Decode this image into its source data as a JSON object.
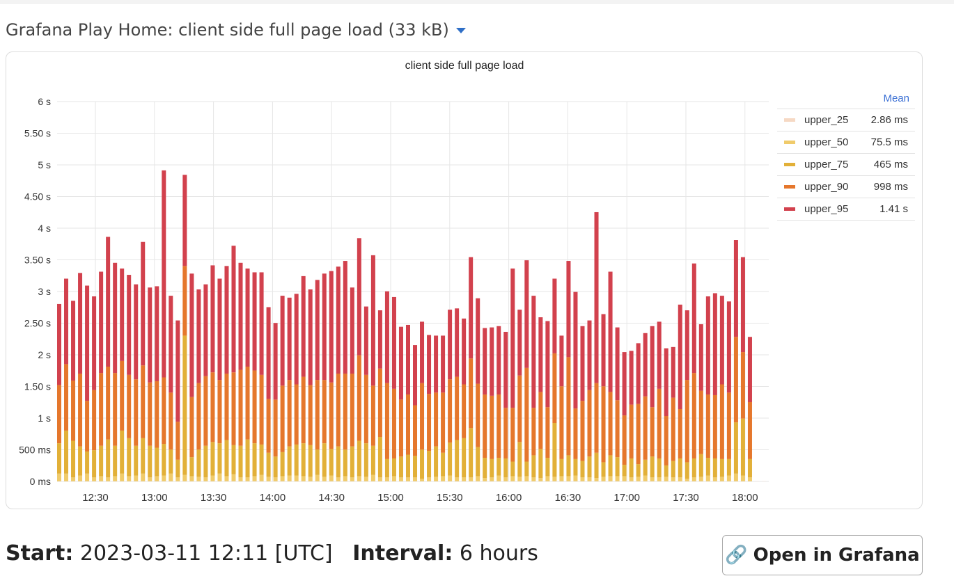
{
  "header": {
    "title": "Grafana Play Home: client side full page load (33 kB)"
  },
  "footer": {
    "start_label": "Start:",
    "start_value": "2023-03-11 12:11 [UTC]",
    "interval_label": "Interval:",
    "interval_value": "6 hours",
    "button_label": "Open in Grafana",
    "button_icon": "link-icon"
  },
  "chart_data": {
    "type": "bar",
    "stacked": true,
    "title": "client side full page load",
    "xlabel": "",
    "ylabel": "",
    "ylim": [
      0,
      6000
    ],
    "yticks": [
      {
        "v": 0,
        "label": "0 ms"
      },
      {
        "v": 500,
        "label": "500 ms"
      },
      {
        "v": 1000,
        "label": "1 s"
      },
      {
        "v": 1500,
        "label": "1.50 s"
      },
      {
        "v": 2000,
        "label": "2 s"
      },
      {
        "v": 2500,
        "label": "2.50 s"
      },
      {
        "v": 3000,
        "label": "3 s"
      },
      {
        "v": 3500,
        "label": "3.50 s"
      },
      {
        "v": 4000,
        "label": "4 s"
      },
      {
        "v": 4500,
        "label": "4.50 s"
      },
      {
        "v": 5000,
        "label": "5 s"
      },
      {
        "v": 5500,
        "label": "5.50 s"
      },
      {
        "v": 6000,
        "label": "6 s"
      }
    ],
    "xticks": [
      "12:30",
      "13:00",
      "13:30",
      "14:00",
      "14:30",
      "15:00",
      "15:30",
      "16:00",
      "16:30",
      "17:00",
      "17:30",
      "18:00"
    ],
    "grid": true,
    "legend_placement": "right",
    "legend_header": "Mean",
    "series": [
      {
        "name": "upper_25",
        "color": "#f6d9c4",
        "mean": "2.86 ms",
        "values": [
          3,
          3,
          3,
          3,
          3,
          3,
          3,
          3,
          3,
          3,
          3,
          3,
          3,
          3,
          3,
          3,
          3,
          3,
          3,
          3,
          3,
          3,
          3,
          3,
          3,
          3,
          3,
          3,
          3,
          3,
          3,
          3,
          3,
          3,
          3,
          3,
          3,
          3,
          3,
          3,
          3,
          3,
          3,
          3,
          3,
          3,
          3,
          3,
          3,
          3,
          3,
          3,
          3,
          3,
          3,
          3,
          3,
          3,
          3,
          3,
          3,
          3,
          3,
          3,
          3,
          3,
          3,
          3,
          3,
          3,
          3,
          3,
          3,
          3,
          3,
          3,
          3,
          3,
          3,
          3,
          3,
          3,
          3,
          3,
          3,
          3,
          3,
          3,
          3,
          3,
          3,
          3,
          3,
          3,
          3,
          3,
          3,
          3,
          3,
          3,
          3,
          3
        ]
      },
      {
        "name": "upper_50",
        "color": "#f0cb6b",
        "mean": "75.5 ms",
        "values": [
          120,
          120,
          60,
          90,
          120,
          60,
          80,
          60,
          80,
          120,
          80,
          90,
          120,
          60,
          80,
          90,
          120,
          60,
          100,
          80,
          70,
          60,
          90,
          120,
          80,
          110,
          60,
          60,
          80,
          100,
          70,
          60,
          80,
          90,
          90,
          80,
          70,
          100,
          70,
          90,
          60,
          80,
          60,
          80,
          70,
          100,
          60,
          60,
          80,
          60,
          60,
          60,
          40,
          60,
          70,
          80,
          90,
          60,
          60,
          60,
          80,
          50,
          60,
          90,
          60,
          80,
          70,
          80,
          60,
          50,
          80,
          70,
          80,
          80,
          90,
          60,
          60,
          50,
          70,
          80,
          80,
          80,
          60,
          70,
          90,
          60,
          60,
          70,
          60,
          60,
          40,
          60,
          70,
          90,
          60,
          70,
          90,
          120,
          90,
          60
        ]
      },
      {
        "name": "upper_75",
        "color": "#e2b038",
        "mean": "465 ms",
        "values": [
          480,
          680,
          580,
          460,
          350,
          430,
          480,
          600,
          480,
          680,
          600,
          470,
          560,
          500,
          450,
          500,
          380,
          280,
          2200,
          300,
          430,
          500,
          530,
          480,
          570,
          460,
          500,
          600,
          520,
          480,
          380,
          330,
          380,
          460,
          490,
          520,
          500,
          400,
          530,
          420,
          490,
          420,
          490,
          560,
          530,
          460,
          640,
          290,
          280,
          330,
          360,
          340,
          460,
          420,
          480,
          370,
          520,
          590,
          620,
          780,
          460,
          320,
          290,
          280,
          300,
          230,
          550,
          230,
          350,
          460,
          290,
          850,
          270,
          330,
          260,
          260,
          330,
          400,
          230,
          330,
          300,
          180,
          300,
          200,
          250,
          330,
          300,
          180,
          260,
          300,
          260,
          300,
          360,
          280,
          300,
          280,
          260,
          810,
          900,
          290
        ]
      },
      {
        "name": "upper_90",
        "color": "#e5772c",
        "mean": "998 ms",
        "values": [
          920,
          1050,
          950,
          1150,
          800,
          950,
          1150,
          1150,
          1150,
          1100,
          1000,
          1050,
          1150,
          1000,
          1050,
          1050,
          900,
          600,
          1100,
          950,
          1050,
          1100,
          1100,
          1000,
          1050,
          1150,
          1200,
          1150,
          1150,
          1100,
          850,
          900,
          1050,
          1050,
          950,
          1050,
          950,
          1100,
          1000,
          1050,
          1150,
          1200,
          1150,
          1350,
          1080,
          950,
          1080,
          1200,
          1100,
          900,
          950,
          800,
          1050,
          900,
          850,
          950,
          1000,
          1000,
          850,
          1100,
          1000,
          1000,
          1000,
          1000,
          800,
          850,
          1050,
          1480,
          750,
          900,
          800,
          1100,
          1150,
          1550,
          800,
          950,
          1050,
          1100,
          1200,
          1000,
          900,
          780,
          850,
          950,
          1000,
          780,
          1100,
          780,
          1000,
          780,
          1300,
          1350,
          1000,
          1000,
          1000,
          1180,
          1050,
          1350,
          1050,
          900
        ]
      },
      {
        "name": "upper_95",
        "color": "#d2414d",
        "mean": "1.41 s",
        "values": [
          1280,
          1350,
          1260,
          1590,
          1820,
          1480,
          1600,
          2050,
          1740,
          1460,
          1580,
          1500,
          1950,
          1500,
          1500,
          3270,
          1530,
          1600,
          1440,
          1950,
          1480,
          1450,
          1690,
          1600,
          1700,
          2000,
          1690,
          1550,
          1550,
          1620,
          1450,
          1210,
          1420,
          1300,
          1430,
          1590,
          1510,
          1580,
          1680,
          1760,
          1690,
          1780,
          1360,
          1850,
          1080,
          2060,
          920,
          1450,
          1450,
          1150,
          1100,
          950,
          970,
          930,
          900,
          900,
          1100,
          1080,
          1040,
          1600,
          1350,
          1050,
          1080,
          1080,
          1200,
          2200,
          1040,
          1700,
          1770,
          1180,
          1360,
          1180,
          800,
          1520,
          1840,
          1180,
          1100,
          2700,
          1140,
          1900,
          1150,
          1000,
          850,
          960,
          1000,
          1280,
          1060,
          1070,
          800,
          1650,
          1100,
          1730,
          1050,
          1550,
          1610,
          1400,
          1440,
          1530,
          1500,
          1030
        ]
      }
    ]
  }
}
